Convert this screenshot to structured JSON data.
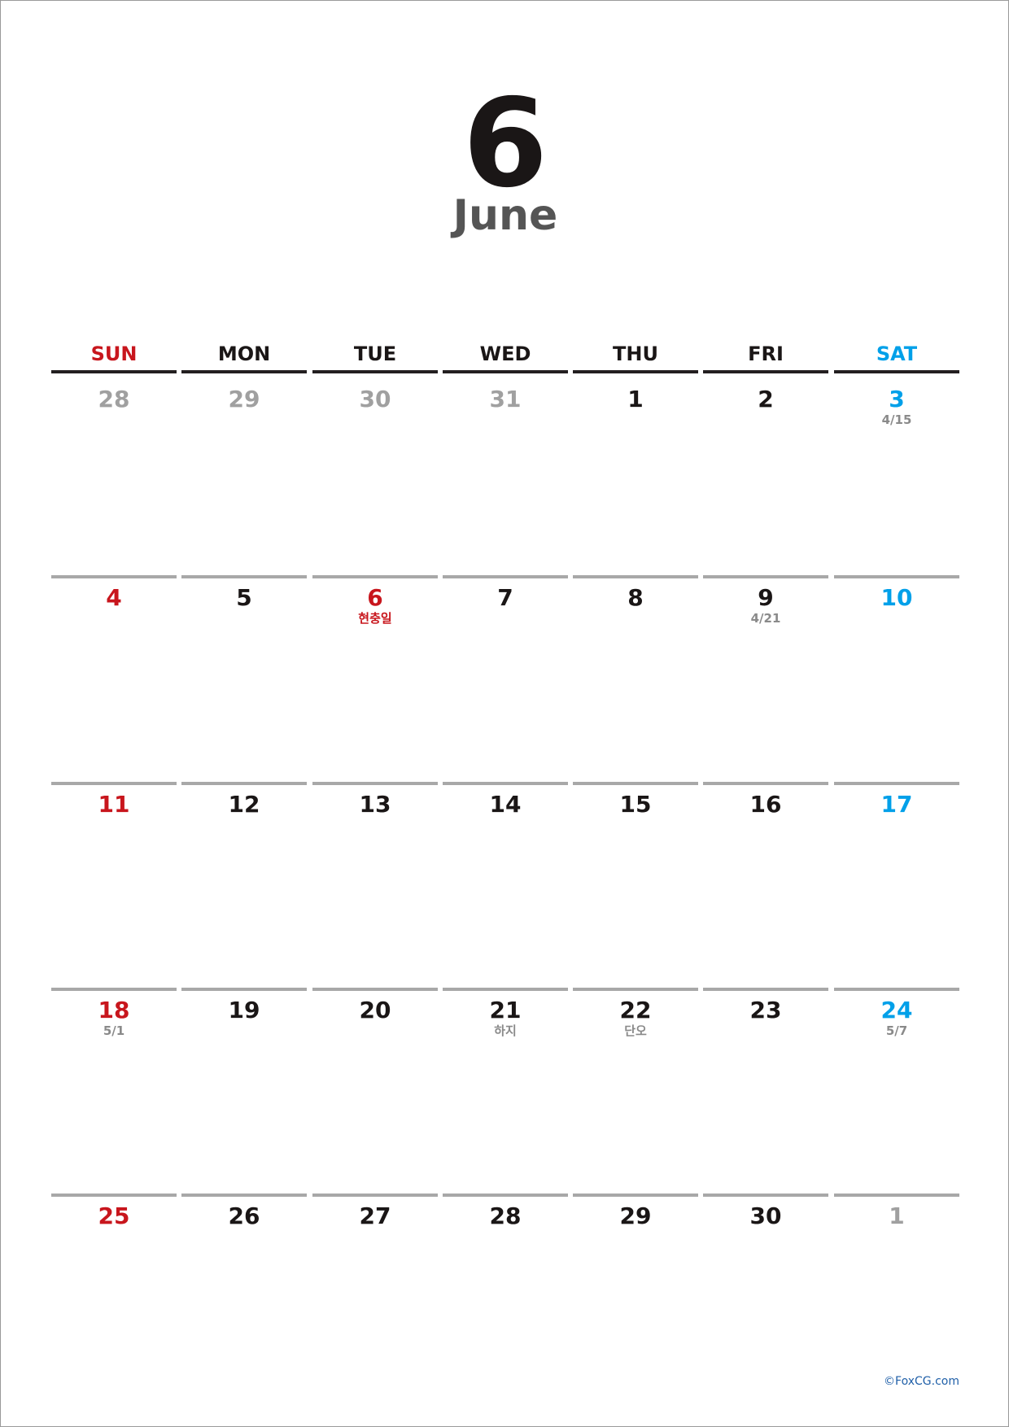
{
  "calendar": {
    "month_number": "6",
    "month_name": "June",
    "colors": {
      "sunday": "#c8161d",
      "saturday": "#00a0e9",
      "weekday": "#1a1616",
      "other_month": "#a0a0a0",
      "note": "#8a8a8a",
      "holiday_note": "#c8161d"
    },
    "weekdays": [
      "SUN",
      "MON",
      "TUE",
      "WED",
      "THU",
      "FRI",
      "SAT"
    ],
    "weeks": [
      [
        {
          "day": "28",
          "other_month": true
        },
        {
          "day": "29",
          "other_month": true
        },
        {
          "day": "30",
          "other_month": true
        },
        {
          "day": "31",
          "other_month": true
        },
        {
          "day": "1"
        },
        {
          "day": "2"
        },
        {
          "day": "3",
          "note": "4/15"
        }
      ],
      [
        {
          "day": "4"
        },
        {
          "day": "5"
        },
        {
          "day": "6",
          "note": "현충일",
          "holiday": true
        },
        {
          "day": "7"
        },
        {
          "day": "8"
        },
        {
          "day": "9",
          "note": "4/21"
        },
        {
          "day": "10"
        }
      ],
      [
        {
          "day": "11"
        },
        {
          "day": "12"
        },
        {
          "day": "13"
        },
        {
          "day": "14"
        },
        {
          "day": "15"
        },
        {
          "day": "16"
        },
        {
          "day": "17"
        }
      ],
      [
        {
          "day": "18",
          "note": "5/1"
        },
        {
          "day": "19"
        },
        {
          "day": "20"
        },
        {
          "day": "21",
          "note": "하지"
        },
        {
          "day": "22",
          "note": "단오"
        },
        {
          "day": "23"
        },
        {
          "day": "24",
          "note": "5/7"
        }
      ],
      [
        {
          "day": "25"
        },
        {
          "day": "26"
        },
        {
          "day": "27"
        },
        {
          "day": "28"
        },
        {
          "day": "29"
        },
        {
          "day": "30"
        },
        {
          "day": "1",
          "other_month": true
        }
      ]
    ],
    "copyright": "©FoxCG.com"
  }
}
